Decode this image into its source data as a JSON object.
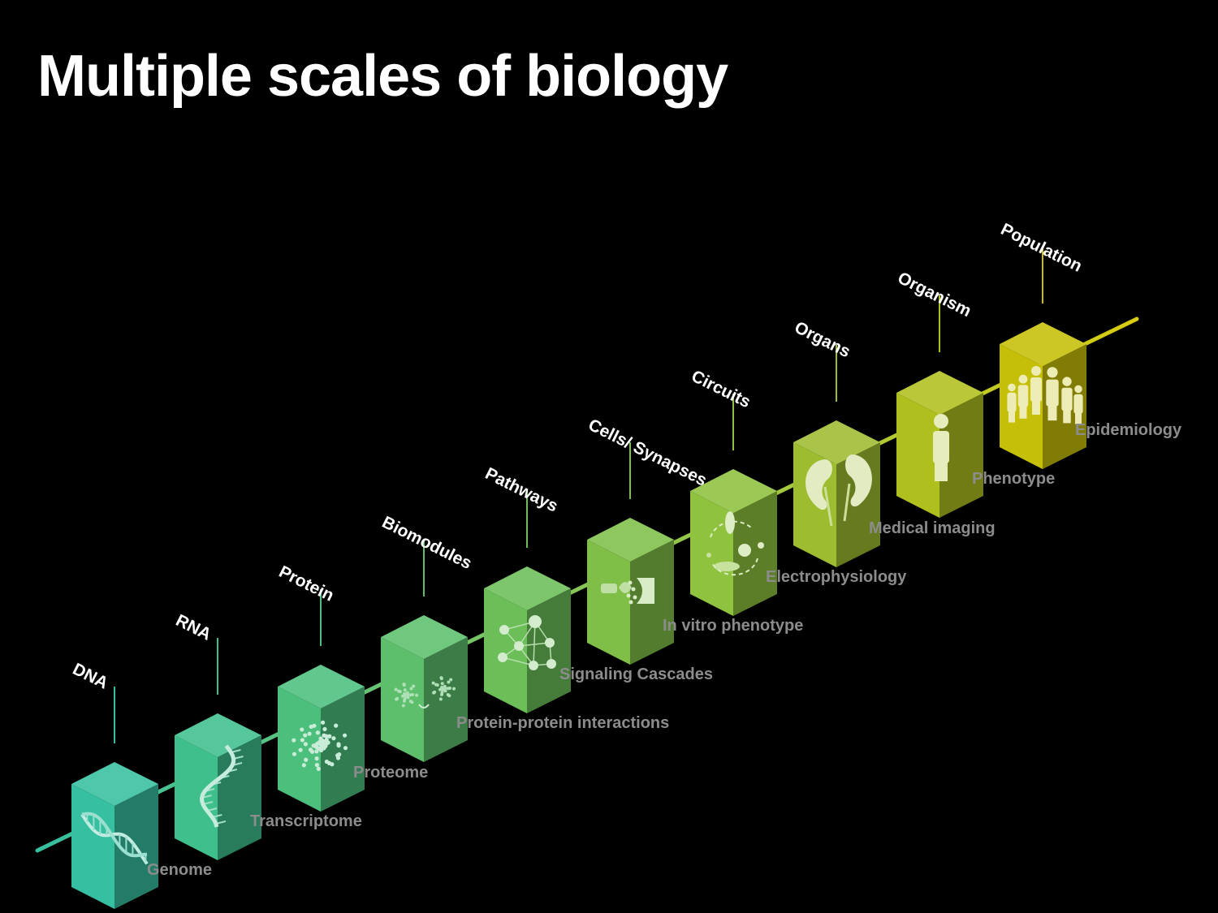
{
  "title": "Multiple scales of biology",
  "stages": [
    {
      "scale": "DNA",
      "data": "Genome",
      "color": "#36bfa0",
      "icon": "dna-helix-icon"
    },
    {
      "scale": "RNA",
      "data": "Transcriptome",
      "color": "#3fbf8c",
      "icon": "rna-strand-icon"
    },
    {
      "scale": "Protein",
      "data": "Proteome",
      "color": "#4cbf7c",
      "icon": "protein-fold-icon"
    },
    {
      "scale": "Biomodules",
      "data": "Protein-protein interactions",
      "color": "#5dbf6c",
      "icon": "protein-pair-icon"
    },
    {
      "scale": "Pathways",
      "data": "Signaling Cascades",
      "color": "#6cbe58",
      "icon": "network-icon"
    },
    {
      "scale": "Cells/ Synapses",
      "data": "In vitro phenotype",
      "color": "#7fbf48",
      "icon": "synapse-icon"
    },
    {
      "scale": "Circuits",
      "data": "Electrophysiology",
      "color": "#8fc23e",
      "icon": "circuit-cycle-icon"
    },
    {
      "scale": "Organs",
      "data": "Medical imaging",
      "color": "#9dbc30",
      "icon": "kidneys-icon"
    },
    {
      "scale": "Organism",
      "data": "Phenotype",
      "color": "#afbf1e",
      "icon": "person-icon"
    },
    {
      "scale": "Population",
      "data": "Epidemiology",
      "color": "#c6bf08",
      "icon": "people-group-icon"
    }
  ]
}
